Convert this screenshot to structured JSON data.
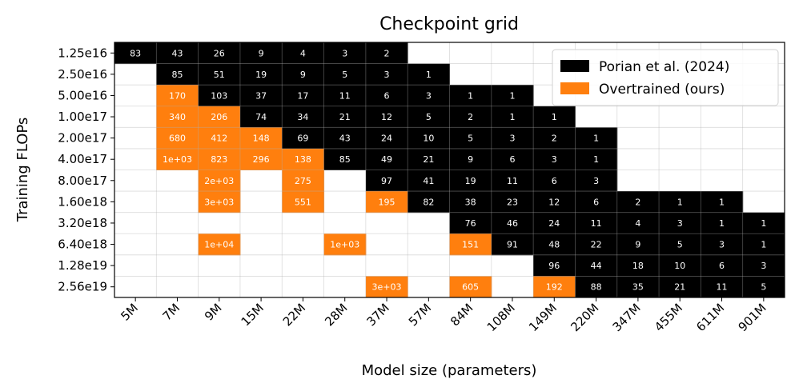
{
  "chart_data": {
    "type": "heatmap",
    "title": "Checkpoint grid",
    "xlabel": "Model size (parameters)",
    "ylabel": "Training FLOPs",
    "x_categories": [
      "5M",
      "7M",
      "9M",
      "15M",
      "22M",
      "28M",
      "37M",
      "57M",
      "84M",
      "108M",
      "149M",
      "220M",
      "347M",
      "455M",
      "611M",
      "901M"
    ],
    "y_categories": [
      "1.25e16",
      "2.50e16",
      "5.00e16",
      "1.00e17",
      "2.00e17",
      "4.00e17",
      "8.00e17",
      "1.60e18",
      "3.20e18",
      "6.40e18",
      "1.28e19",
      "2.56e19"
    ],
    "grid": true,
    "legend_position": "top-right",
    "series": [
      {
        "name": "Porian et al. (2024)",
        "color": "#000000"
      },
      {
        "name": "Overtrained (ours)",
        "color": "#ff7f0e"
      }
    ],
    "cells": [
      {
        "x": "5M",
        "y": "1.25e16",
        "label": "83",
        "series": 0
      },
      {
        "x": "7M",
        "y": "1.25e16",
        "label": "43",
        "series": 0
      },
      {
        "x": "9M",
        "y": "1.25e16",
        "label": "26",
        "series": 0
      },
      {
        "x": "15M",
        "y": "1.25e16",
        "label": "9",
        "series": 0
      },
      {
        "x": "22M",
        "y": "1.25e16",
        "label": "4",
        "series": 0
      },
      {
        "x": "28M",
        "y": "1.25e16",
        "label": "3",
        "series": 0
      },
      {
        "x": "37M",
        "y": "1.25e16",
        "label": "2",
        "series": 0
      },
      {
        "x": "7M",
        "y": "2.50e16",
        "label": "85",
        "series": 0
      },
      {
        "x": "9M",
        "y": "2.50e16",
        "label": "51",
        "series": 0
      },
      {
        "x": "15M",
        "y": "2.50e16",
        "label": "19",
        "series": 0
      },
      {
        "x": "22M",
        "y": "2.50e16",
        "label": "9",
        "series": 0
      },
      {
        "x": "28M",
        "y": "2.50e16",
        "label": "5",
        "series": 0
      },
      {
        "x": "37M",
        "y": "2.50e16",
        "label": "3",
        "series": 0
      },
      {
        "x": "57M",
        "y": "2.50e16",
        "label": "1",
        "series": 0
      },
      {
        "x": "7M",
        "y": "5.00e16",
        "label": "170",
        "series": 1
      },
      {
        "x": "9M",
        "y": "5.00e16",
        "label": "103",
        "series": 0
      },
      {
        "x": "15M",
        "y": "5.00e16",
        "label": "37",
        "series": 0
      },
      {
        "x": "22M",
        "y": "5.00e16",
        "label": "17",
        "series": 0
      },
      {
        "x": "28M",
        "y": "5.00e16",
        "label": "11",
        "series": 0
      },
      {
        "x": "37M",
        "y": "5.00e16",
        "label": "6",
        "series": 0
      },
      {
        "x": "57M",
        "y": "5.00e16",
        "label": "3",
        "series": 0
      },
      {
        "x": "84M",
        "y": "5.00e16",
        "label": "1",
        "series": 0
      },
      {
        "x": "108M",
        "y": "5.00e16",
        "label": "1",
        "series": 0
      },
      {
        "x": "7M",
        "y": "1.00e17",
        "label": "340",
        "series": 1
      },
      {
        "x": "9M",
        "y": "1.00e17",
        "label": "206",
        "series": 1
      },
      {
        "x": "15M",
        "y": "1.00e17",
        "label": "74",
        "series": 0
      },
      {
        "x": "22M",
        "y": "1.00e17",
        "label": "34",
        "series": 0
      },
      {
        "x": "28M",
        "y": "1.00e17",
        "label": "21",
        "series": 0
      },
      {
        "x": "37M",
        "y": "1.00e17",
        "label": "12",
        "series": 0
      },
      {
        "x": "57M",
        "y": "1.00e17",
        "label": "5",
        "series": 0
      },
      {
        "x": "84M",
        "y": "1.00e17",
        "label": "2",
        "series": 0
      },
      {
        "x": "108M",
        "y": "1.00e17",
        "label": "1",
        "series": 0
      },
      {
        "x": "149M",
        "y": "1.00e17",
        "label": "1",
        "series": 0
      },
      {
        "x": "7M",
        "y": "2.00e17",
        "label": "680",
        "series": 1
      },
      {
        "x": "9M",
        "y": "2.00e17",
        "label": "412",
        "series": 1
      },
      {
        "x": "15M",
        "y": "2.00e17",
        "label": "148",
        "series": 1
      },
      {
        "x": "22M",
        "y": "2.00e17",
        "label": "69",
        "series": 0
      },
      {
        "x": "28M",
        "y": "2.00e17",
        "label": "43",
        "series": 0
      },
      {
        "x": "37M",
        "y": "2.00e17",
        "label": "24",
        "series": 0
      },
      {
        "x": "57M",
        "y": "2.00e17",
        "label": "10",
        "series": 0
      },
      {
        "x": "84M",
        "y": "2.00e17",
        "label": "5",
        "series": 0
      },
      {
        "x": "108M",
        "y": "2.00e17",
        "label": "3",
        "series": 0
      },
      {
        "x": "149M",
        "y": "2.00e17",
        "label": "2",
        "series": 0
      },
      {
        "x": "220M",
        "y": "2.00e17",
        "label": "1",
        "series": 0
      },
      {
        "x": "7M",
        "y": "4.00e17",
        "label": "1e+03",
        "series": 1
      },
      {
        "x": "9M",
        "y": "4.00e17",
        "label": "823",
        "series": 1
      },
      {
        "x": "15M",
        "y": "4.00e17",
        "label": "296",
        "series": 1
      },
      {
        "x": "22M",
        "y": "4.00e17",
        "label": "138",
        "series": 1
      },
      {
        "x": "28M",
        "y": "4.00e17",
        "label": "85",
        "series": 0
      },
      {
        "x": "37M",
        "y": "4.00e17",
        "label": "49",
        "series": 0
      },
      {
        "x": "57M",
        "y": "4.00e17",
        "label": "21",
        "series": 0
      },
      {
        "x": "84M",
        "y": "4.00e17",
        "label": "9",
        "series": 0
      },
      {
        "x": "108M",
        "y": "4.00e17",
        "label": "6",
        "series": 0
      },
      {
        "x": "149M",
        "y": "4.00e17",
        "label": "3",
        "series": 0
      },
      {
        "x": "220M",
        "y": "4.00e17",
        "label": "1",
        "series": 0
      },
      {
        "x": "9M",
        "y": "8.00e17",
        "label": "2e+03",
        "series": 1
      },
      {
        "x": "22M",
        "y": "8.00e17",
        "label": "275",
        "series": 1
      },
      {
        "x": "37M",
        "y": "8.00e17",
        "label": "97",
        "series": 0
      },
      {
        "x": "57M",
        "y": "8.00e17",
        "label": "41",
        "series": 0
      },
      {
        "x": "84M",
        "y": "8.00e17",
        "label": "19",
        "series": 0
      },
      {
        "x": "108M",
        "y": "8.00e17",
        "label": "11",
        "series": 0
      },
      {
        "x": "149M",
        "y": "8.00e17",
        "label": "6",
        "series": 0
      },
      {
        "x": "220M",
        "y": "8.00e17",
        "label": "3",
        "series": 0
      },
      {
        "x": "9M",
        "y": "1.60e18",
        "label": "3e+03",
        "series": 1
      },
      {
        "x": "22M",
        "y": "1.60e18",
        "label": "551",
        "series": 1
      },
      {
        "x": "37M",
        "y": "1.60e18",
        "label": "195",
        "series": 1
      },
      {
        "x": "57M",
        "y": "1.60e18",
        "label": "82",
        "series": 0
      },
      {
        "x": "84M",
        "y": "1.60e18",
        "label": "38",
        "series": 0
      },
      {
        "x": "108M",
        "y": "1.60e18",
        "label": "23",
        "series": 0
      },
      {
        "x": "149M",
        "y": "1.60e18",
        "label": "12",
        "series": 0
      },
      {
        "x": "220M",
        "y": "1.60e18",
        "label": "6",
        "series": 0
      },
      {
        "x": "347M",
        "y": "1.60e18",
        "label": "2",
        "series": 0
      },
      {
        "x": "455M",
        "y": "1.60e18",
        "label": "1",
        "series": 0
      },
      {
        "x": "611M",
        "y": "1.60e18",
        "label": "1",
        "series": 0
      },
      {
        "x": "84M",
        "y": "3.20e18",
        "label": "76",
        "series": 0
      },
      {
        "x": "108M",
        "y": "3.20e18",
        "label": "46",
        "series": 0
      },
      {
        "x": "149M",
        "y": "3.20e18",
        "label": "24",
        "series": 0
      },
      {
        "x": "220M",
        "y": "3.20e18",
        "label": "11",
        "series": 0
      },
      {
        "x": "347M",
        "y": "3.20e18",
        "label": "4",
        "series": 0
      },
      {
        "x": "455M",
        "y": "3.20e18",
        "label": "3",
        "series": 0
      },
      {
        "x": "611M",
        "y": "3.20e18",
        "label": "1",
        "series": 0
      },
      {
        "x": "901M",
        "y": "3.20e18",
        "label": "1",
        "series": 0
      },
      {
        "x": "9M",
        "y": "6.40e18",
        "label": "1e+04",
        "series": 1
      },
      {
        "x": "28M",
        "y": "6.40e18",
        "label": "1e+03",
        "series": 1
      },
      {
        "x": "84M",
        "y": "6.40e18",
        "label": "151",
        "series": 1
      },
      {
        "x": "108M",
        "y": "6.40e18",
        "label": "91",
        "series": 0
      },
      {
        "x": "149M",
        "y": "6.40e18",
        "label": "48",
        "series": 0
      },
      {
        "x": "220M",
        "y": "6.40e18",
        "label": "22",
        "series": 0
      },
      {
        "x": "347M",
        "y": "6.40e18",
        "label": "9",
        "series": 0
      },
      {
        "x": "455M",
        "y": "6.40e18",
        "label": "5",
        "series": 0
      },
      {
        "x": "611M",
        "y": "6.40e18",
        "label": "3",
        "series": 0
      },
      {
        "x": "901M",
        "y": "6.40e18",
        "label": "1",
        "series": 0
      },
      {
        "x": "149M",
        "y": "1.28e19",
        "label": "96",
        "series": 0
      },
      {
        "x": "220M",
        "y": "1.28e19",
        "label": "44",
        "series": 0
      },
      {
        "x": "347M",
        "y": "1.28e19",
        "label": "18",
        "series": 0
      },
      {
        "x": "455M",
        "y": "1.28e19",
        "label": "10",
        "series": 0
      },
      {
        "x": "611M",
        "y": "1.28e19",
        "label": "6",
        "series": 0
      },
      {
        "x": "901M",
        "y": "1.28e19",
        "label": "3",
        "series": 0
      },
      {
        "x": "37M",
        "y": "2.56e19",
        "label": "3e+03",
        "series": 1
      },
      {
        "x": "84M",
        "y": "2.56e19",
        "label": "605",
        "series": 1
      },
      {
        "x": "149M",
        "y": "2.56e19",
        "label": "192",
        "series": 1
      },
      {
        "x": "220M",
        "y": "2.56e19",
        "label": "88",
        "series": 0
      },
      {
        "x": "347M",
        "y": "2.56e19",
        "label": "35",
        "series": 0
      },
      {
        "x": "455M",
        "y": "2.56e19",
        "label": "21",
        "series": 0
      },
      {
        "x": "611M",
        "y": "2.56e19",
        "label": "11",
        "series": 0
      },
      {
        "x": "901M",
        "y": "2.56e19",
        "label": "5",
        "series": 0
      }
    ]
  }
}
